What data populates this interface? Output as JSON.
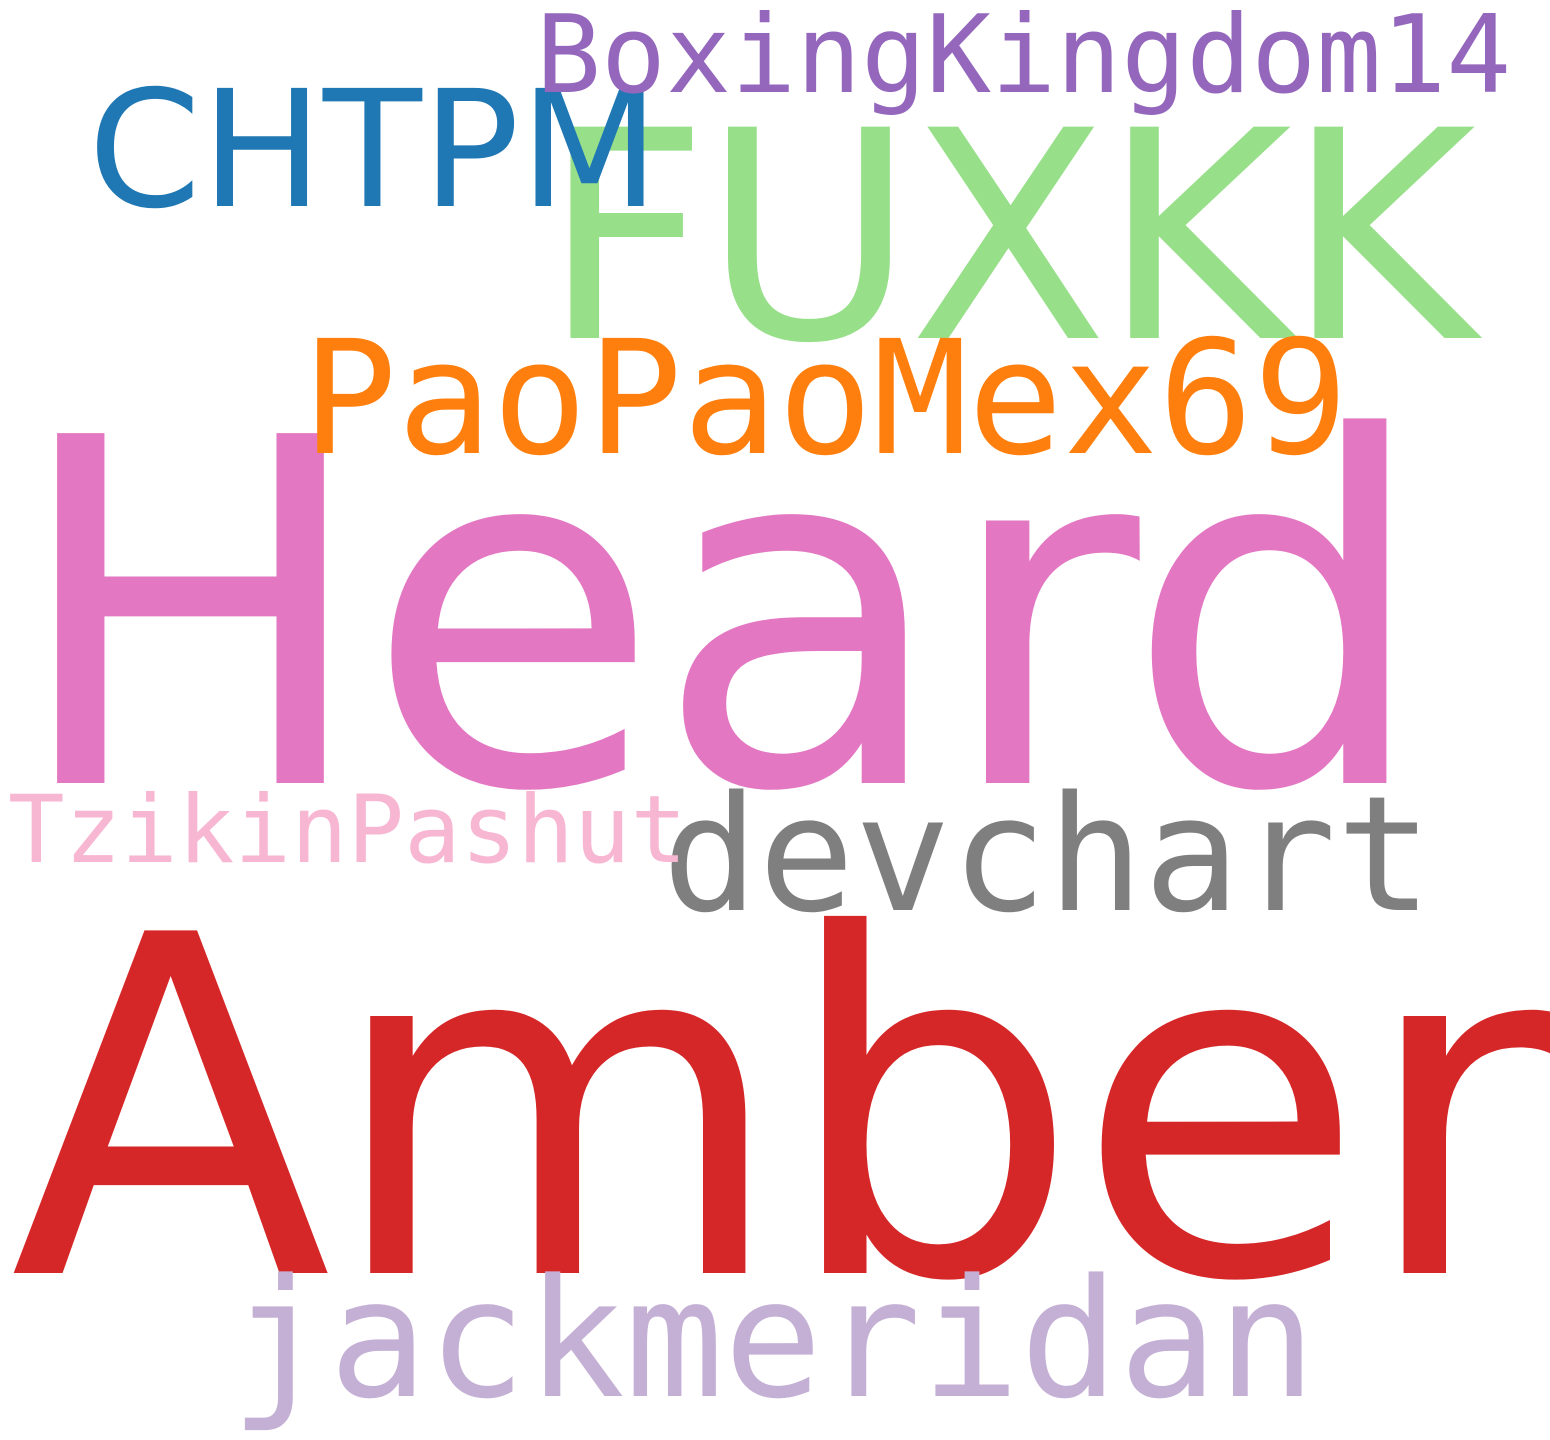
{
  "wordcloud": {
    "words": [
      {
        "text": "Heard",
        "color": "#e377c2"
      },
      {
        "text": "Amber",
        "color": "#d62728"
      },
      {
        "text": "FUXKK",
        "color": "#98df8a"
      },
      {
        "text": "PaoPaoMex69",
        "color": "#ff7f0e"
      },
      {
        "text": "CHTPM",
        "color": "#1f77b4"
      },
      {
        "text": "BoxingKingdom14",
        "color": "#9467bd"
      },
      {
        "text": "devchart",
        "color": "#7f7f7f"
      },
      {
        "text": "TzikinPashut",
        "color": "#f7b6d2"
      },
      {
        "text": "jackmeridan",
        "color": "#c5b0d5"
      }
    ]
  }
}
